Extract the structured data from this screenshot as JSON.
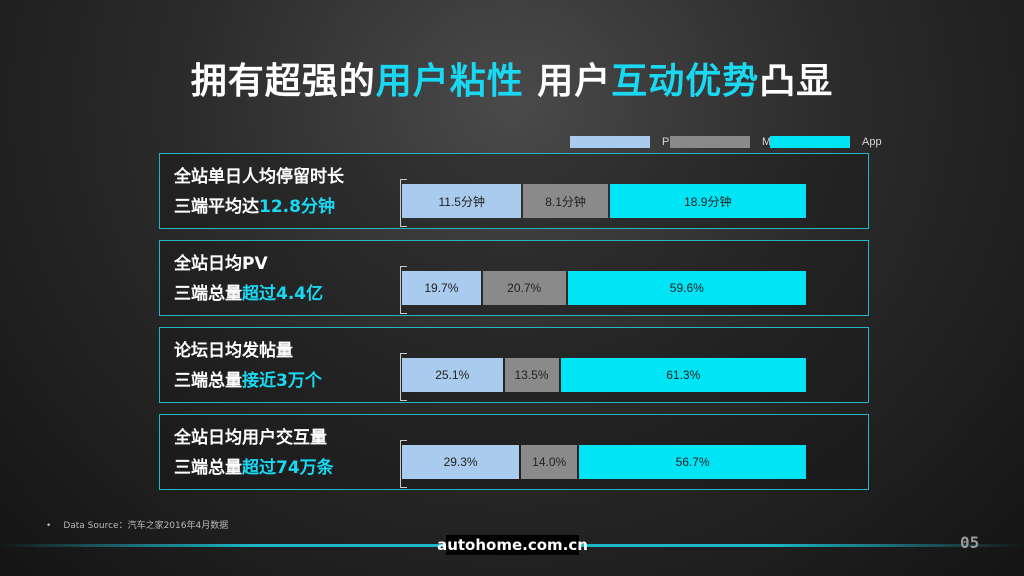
{
  "title": {
    "parts": [
      {
        "text": "拥有超强的",
        "style": "w"
      },
      {
        "text": "用户粘性",
        "style": "c"
      },
      {
        "text": " 用户",
        "style": "w"
      },
      {
        "text": "互动优势",
        "style": "c"
      },
      {
        "text": "凸显",
        "style": "w"
      }
    ]
  },
  "legend": [
    {
      "label": "PC",
      "color": "#a9cbed"
    },
    {
      "label": "M",
      "color": "#8a8a8a"
    },
    {
      "label": "App",
      "color": "#00e5f5"
    }
  ],
  "panels": [
    {
      "line1": "全站单日人均停留时长",
      "line2_prefix": "三端平均达",
      "line2_highlight": "12.8分钟",
      "bars": [
        {
          "series": "PC",
          "label": "11.5分钟"
        },
        {
          "series": "M",
          "label": "8.1分钟"
        },
        {
          "series": "App",
          "label": "18.9分钟"
        }
      ]
    },
    {
      "line1": "全站日均PV",
      "line2_prefix": "三端总量",
      "line2_highlight": "超过4.4亿",
      "bars": [
        {
          "series": "PC",
          "label": "19.7%"
        },
        {
          "series": "M",
          "label": "20.7%"
        },
        {
          "series": "App",
          "label": "59.6%"
        }
      ]
    },
    {
      "line1": "论坛日均发帖量",
      "line2_prefix": "三端总量",
      "line2_highlight": "接近3万个",
      "bars": [
        {
          "series": "PC",
          "label": "25.1%"
        },
        {
          "series": "M",
          "label": "13.5%"
        },
        {
          "series": "App",
          "label": "61.3%"
        }
      ]
    },
    {
      "line1": "全站日均用户交互量",
      "line2_prefix": "三端总量",
      "line2_highlight": "超过74万条",
      "bars": [
        {
          "series": "PC",
          "label": "29.3%"
        },
        {
          "series": "M",
          "label": "14.0%"
        },
        {
          "series": "App",
          "label": "56.7%"
        }
      ]
    }
  ],
  "chart_data": {
    "type": "bar",
    "stacked": true,
    "orientation": "horizontal",
    "categories": [
      "全站单日人均停留时长",
      "全站日均PV",
      "论坛日均发帖量",
      "全站日均用户交互量"
    ],
    "series": [
      {
        "name": "PC",
        "color": "#a9cbed",
        "values": [
          11.5,
          19.7,
          25.1,
          29.3
        ],
        "labels": [
          "11.5分钟",
          "19.7%",
          "25.1%",
          "29.3%"
        ]
      },
      {
        "name": "M",
        "color": "#8a8a8a",
        "values": [
          8.1,
          20.7,
          13.5,
          14.0
        ],
        "labels": [
          "8.1分钟",
          "20.7%",
          "13.5%",
          "14.0%"
        ]
      },
      {
        "name": "App",
        "color": "#00e5f5",
        "values": [
          18.9,
          59.6,
          61.3,
          56.7
        ],
        "labels": [
          "18.9分钟",
          "59.6%",
          "61.3%",
          "56.7%"
        ]
      }
    ],
    "legend_position": "top-right"
  },
  "footer": {
    "bullet": "•",
    "source": "Data Source：汽车之家2016年4月数据",
    "brand": "autohome.com.cn",
    "page": "05"
  }
}
